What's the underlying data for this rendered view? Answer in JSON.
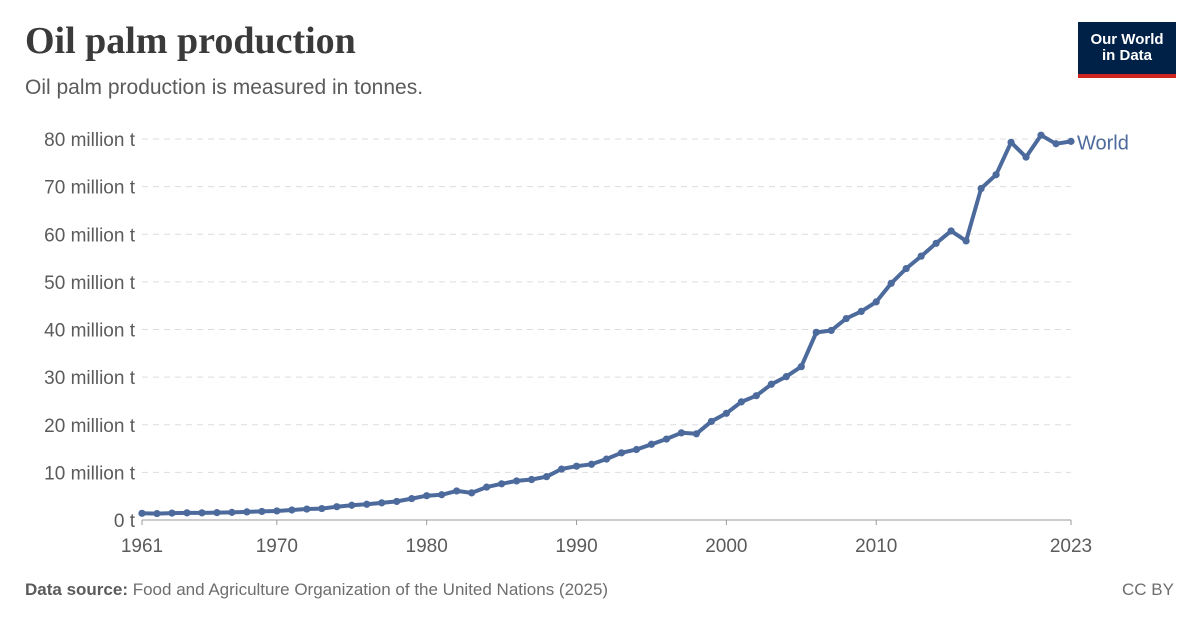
{
  "title": "Oil palm production",
  "subtitle": "Oil palm production is measured in tonnes.",
  "logo": {
    "line1": "Our World",
    "line2": "in Data"
  },
  "footer": {
    "source_label": "Data source:",
    "source_text": "Food and Agriculture Organization of the United Nations (2025)",
    "license": "CC BY"
  },
  "colors": {
    "series": "#4c6a9c",
    "grid": "#dddddd",
    "axis": "#999999"
  },
  "chart_data": {
    "type": "line",
    "title": "Oil palm production",
    "ylim": [
      0,
      80000000
    ],
    "yticks": [
      {
        "value": 0,
        "label": "0 t"
      },
      {
        "value": 10000000,
        "label": "10 million t"
      },
      {
        "value": 20000000,
        "label": "20 million t"
      },
      {
        "value": 30000000,
        "label": "30 million t"
      },
      {
        "value": 40000000,
        "label": "40 million t"
      },
      {
        "value": 50000000,
        "label": "50 million t"
      },
      {
        "value": 60000000,
        "label": "60 million t"
      },
      {
        "value": 70000000,
        "label": "70 million t"
      },
      {
        "value": 80000000,
        "label": "80 million t"
      }
    ],
    "xlim": [
      1961,
      2023
    ],
    "xticks": [
      {
        "value": 1961,
        "label": "1961"
      },
      {
        "value": 1970,
        "label": "1970"
      },
      {
        "value": 1980,
        "label": "1980"
      },
      {
        "value": 1990,
        "label": "1990"
      },
      {
        "value": 2000,
        "label": "2000"
      },
      {
        "value": 2010,
        "label": "2010"
      },
      {
        "value": 2023,
        "label": "2023"
      }
    ],
    "grid": true,
    "series": [
      {
        "name": "World",
        "x": [
          1961,
          1962,
          1963,
          1964,
          1965,
          1966,
          1967,
          1968,
          1969,
          1970,
          1971,
          1972,
          1973,
          1974,
          1975,
          1976,
          1977,
          1978,
          1979,
          1980,
          1981,
          1982,
          1983,
          1984,
          1985,
          1986,
          1987,
          1988,
          1989,
          1990,
          1991,
          1992,
          1993,
          1994,
          1995,
          1996,
          1997,
          1998,
          1999,
          2000,
          2001,
          2002,
          2003,
          2004,
          2005,
          2006,
          2007,
          2008,
          2009,
          2010,
          2011,
          2012,
          2013,
          2014,
          2015,
          2016,
          2017,
          2018,
          2019,
          2020,
          2021,
          2022,
          2023
        ],
        "values": [
          1400000,
          1350000,
          1450000,
          1500000,
          1500000,
          1550000,
          1600000,
          1700000,
          1800000,
          1900000,
          2100000,
          2300000,
          2400000,
          2800000,
          3100000,
          3300000,
          3600000,
          3900000,
          4500000,
          5100000,
          5300000,
          6100000,
          5700000,
          6900000,
          7600000,
          8200000,
          8500000,
          9100000,
          10700000,
          11300000,
          11700000,
          12800000,
          14100000,
          14800000,
          15900000,
          17000000,
          18300000,
          18100000,
          20700000,
          22400000,
          24800000,
          26100000,
          28500000,
          30100000,
          32200000,
          39400000,
          39800000,
          42300000,
          43800000,
          45800000,
          49700000,
          52800000,
          55400000,
          58100000,
          60700000,
          58600000,
          69600000,
          72500000,
          79300000,
          76200000,
          80800000,
          79000000,
          79500000
        ]
      }
    ]
  }
}
